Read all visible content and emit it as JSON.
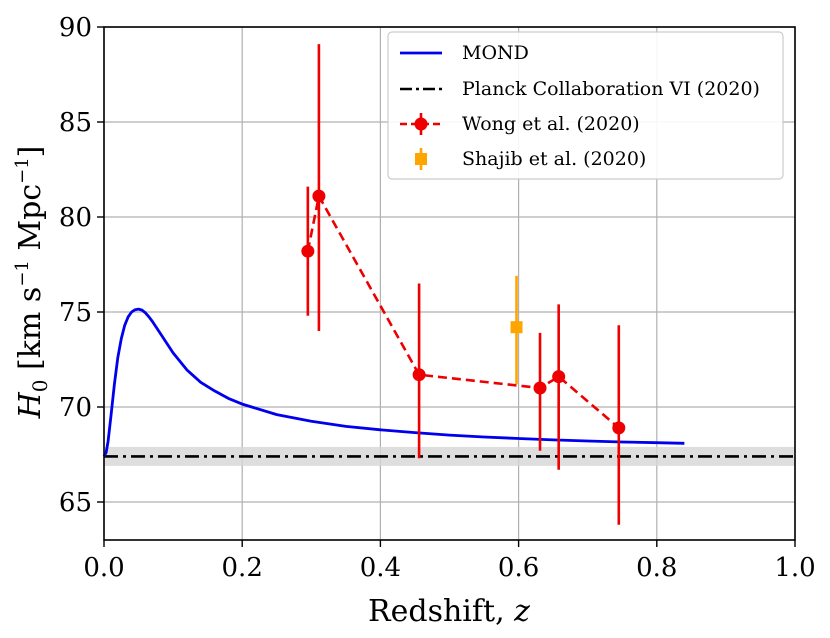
{
  "chart_data": {
    "type": "line",
    "xlabel": "Redshift, z",
    "ylabel": "H0 [km s^-1 Mpc^-1]",
    "xlim": [
      0.0,
      1.0
    ],
    "ylim": [
      63.0,
      90.0
    ],
    "xticks": [
      "0.0",
      "0.2",
      "0.4",
      "0.6",
      "0.8",
      "1.0"
    ],
    "yticks": [
      "65",
      "70",
      "75",
      "80",
      "85",
      "90"
    ],
    "grid": true,
    "legend_position": "top-right",
    "colors": {
      "mond": "#0000ee",
      "planck": "#000000",
      "planck_band": "#d6d6d6",
      "wong": "#ee0000",
      "shajib": "#ffa500"
    },
    "series": [
      {
        "name": "MOND",
        "style": "solid",
        "x": [
          0.0,
          0.003,
          0.006,
          0.01,
          0.015,
          0.02,
          0.025,
          0.03,
          0.035,
          0.04,
          0.045,
          0.05,
          0.055,
          0.06,
          0.065,
          0.07,
          0.08,
          0.09,
          0.1,
          0.12,
          0.14,
          0.16,
          0.18,
          0.2,
          0.25,
          0.3,
          0.35,
          0.4,
          0.45,
          0.5,
          0.55,
          0.6,
          0.65,
          0.7,
          0.75,
          0.8,
          0.84
        ],
        "y": [
          67.4,
          67.6,
          68.2,
          69.5,
          71.2,
          72.6,
          73.6,
          74.3,
          74.75,
          75.0,
          75.12,
          75.15,
          75.1,
          74.95,
          74.75,
          74.5,
          73.95,
          73.4,
          72.85,
          71.95,
          71.3,
          70.85,
          70.45,
          70.15,
          69.6,
          69.25,
          68.98,
          68.8,
          68.65,
          68.52,
          68.42,
          68.34,
          68.27,
          68.21,
          68.16,
          68.12,
          68.09
        ]
      },
      {
        "name": "Planck Collaboration VI (2020)",
        "style": "dashdot",
        "value": 67.4,
        "band": [
          66.9,
          67.9
        ]
      },
      {
        "name": "Wong et al. (2020)",
        "style": "dashed-markers",
        "x": [
          0.295,
          0.311,
          0.456,
          0.631,
          0.658,
          0.745
        ],
        "y": [
          78.2,
          81.1,
          71.7,
          71.0,
          71.6,
          68.9
        ],
        "err_low": [
          3.4,
          7.1,
          4.4,
          3.3,
          4.9,
          5.1
        ],
        "err_high": [
          3.4,
          8.0,
          4.8,
          2.9,
          3.8,
          5.4
        ]
      },
      {
        "name": "Shajib et al. (2020)",
        "style": "square-marker",
        "x": [
          0.597
        ],
        "y": [
          74.2
        ],
        "err_low": [
          3.0
        ],
        "err_high": [
          2.7
        ]
      }
    ],
    "legend": [
      "MOND",
      "Planck Collaboration VI (2020)",
      "Wong et al. (2020)",
      "Shajib et al. (2020)"
    ]
  }
}
